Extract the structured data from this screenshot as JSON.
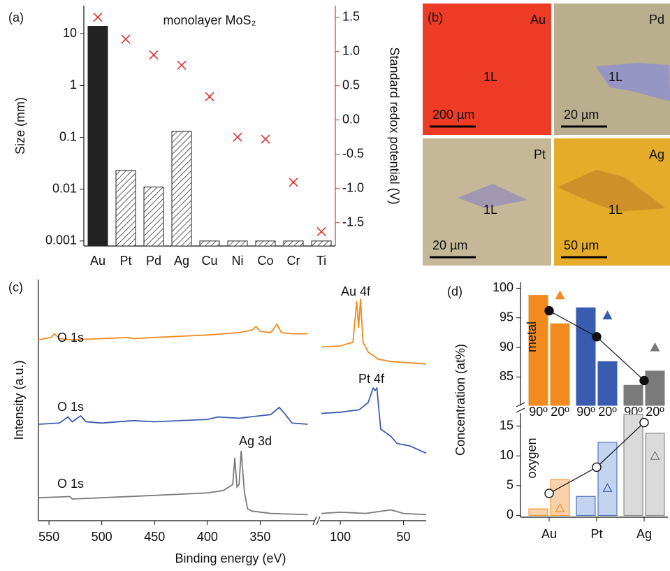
{
  "chart_data": [
    {
      "type": "bar",
      "label": "(a)",
      "title": "monolayer MoS₂",
      "categories": [
        "Au",
        "Pt",
        "Pd",
        "Ag",
        "Cu",
        "Ni",
        "Co",
        "Cr",
        "Ti"
      ],
      "ylabel": "Size (mm)",
      "y2label": "Standard redox potential (V)",
      "yscale": "log",
      "ylim": [
        0.0008,
        35
      ],
      "yticks": [
        0.001,
        0.01,
        0.1,
        1,
        10
      ],
      "y2lim": [
        -1.84,
        1.67
      ],
      "y2ticks": [
        -1.5,
        {
          "value": -1,
          "label": "-1.0"
        },
        -0.5,
        {
          "value": 0,
          "label": "0.0"
        },
        0.5,
        {
          "value": 1,
          "label": "1.0"
        },
        1.5
      ],
      "series": [
        {
          "type": "bar",
          "color": "#222222",
          "hatched": [
            false,
            true,
            true,
            true,
            true,
            true,
            true,
            true,
            true
          ],
          "values": [
            14,
            0.023,
            0.011,
            0.13,
            0.001,
            0.001,
            0.001,
            0.001,
            0.001
          ]
        },
        {
          "type": "scatter",
          "marker": "x",
          "axis": "y2",
          "color": "#e03030",
          "values": [
            1.5,
            1.18,
            0.95,
            0.8,
            0.34,
            -0.25,
            -0.28,
            -0.91,
            -1.63
          ]
        }
      ]
    },
    {
      "type": "line",
      "label": "(c)",
      "xlabel": "Binding energy (eV)",
      "ylabel": "Intensity (a.u.)",
      "xlim": [
        560,
        32
      ],
      "xbreak": [
        300,
        115
      ],
      "xticks": [
        550,
        500,
        450,
        400,
        350,
        100,
        50
      ],
      "ylim": [
        0,
        10
      ],
      "series": [
        {
          "color": "#f28a1e",
          "x": [
            560,
            548,
            545,
            540,
            530,
            500,
            475,
            470,
            450,
            400,
            370,
            358,
            354,
            350,
            340,
            334,
            330,
            320,
            305,
            null,
            115,
            100,
            90,
            87,
            85.5,
            84,
            82,
            78,
            70,
            60,
            32
          ],
          "values": [
            7.5,
            7.6,
            7.75,
            7.55,
            7.5,
            7.55,
            7.6,
            7.55,
            7.6,
            7.7,
            7.8,
            7.9,
            8.05,
            7.85,
            7.8,
            8.15,
            7.8,
            7.75,
            7.75,
            null,
            7.2,
            7.25,
            7.4,
            9.1,
            8.0,
            9.2,
            7.4,
            7.0,
            6.7,
            6.6,
            6.5
          ]
        },
        {
          "color": "#3a5cb0",
          "x": [
            560,
            540,
            532,
            528,
            520,
            515,
            500,
            470,
            450,
            400,
            390,
            370,
            350,
            340,
            332,
            326,
            320,
            305,
            null,
            115,
            100,
            85,
            78,
            74,
            72.5,
            71,
            68,
            60,
            55,
            45,
            32
          ],
          "values": [
            4.0,
            4.05,
            4.3,
            4.1,
            4.35,
            4.1,
            4.05,
            4.15,
            4.1,
            4.2,
            4.3,
            4.25,
            4.35,
            4.4,
            4.7,
            4.4,
            4.05,
            4.0,
            null,
            4.45,
            4.5,
            4.6,
            4.9,
            5.5,
            5.4,
            5.5,
            3.8,
            3.5,
            3.2,
            3.1,
            2.8
          ]
        },
        {
          "color": "#7a7a7a",
          "x": [
            560,
            530,
            528,
            500,
            450,
            400,
            385,
            376,
            374,
            372,
            370,
            368,
            365,
            362,
            358,
            340,
            305,
            null,
            115,
            100,
            80,
            60,
            50,
            32
          ],
          "values": [
            0.95,
            1.0,
            0.9,
            0.95,
            1.05,
            1.15,
            1.25,
            1.5,
            2.6,
            1.4,
            1.5,
            2.9,
            1.2,
            0.5,
            0.4,
            0.3,
            0.25,
            null,
            0.3,
            0.35,
            0.3,
            0.45,
            0.3,
            0.25
          ]
        }
      ],
      "annotations": [
        {
          "text": "O 1s",
          "color": "#333333"
        },
        {
          "text": "O 1s",
          "color": "#333333"
        },
        {
          "text": "O 1s",
          "color": "#333333"
        },
        {
          "text": "Au 4f",
          "color": "#f28a1e"
        },
        {
          "text": "Pt 4f",
          "color": "#3a5cb0"
        },
        {
          "text": "Ag 3d",
          "color": "#7a7a7a"
        }
      ]
    },
    {
      "type": "bar",
      "label": "(d)",
      "ylabel": "Concentration (at%)",
      "name": "metal",
      "ylim": [
        80.2,
        101
      ],
      "yticks": [
        85,
        90,
        95,
        100
      ],
      "filled": true,
      "category_colors": [
        "#f28a1e",
        "#3a5cb0",
        "#7a7a7a"
      ],
      "edge_colors": [
        "#f28a1e",
        "#3a5cb0",
        "#7a7a7a"
      ],
      "series": [
        {
          "name": "90º",
          "values": [
            98.8,
            96.7,
            83.6
          ]
        },
        {
          "name": "20º",
          "values": [
            94,
            87.6,
            86
          ]
        }
      ],
      "markers": [
        {
          "shape": "circle",
          "color": "#111111",
          "values": [
            96.2,
            91.8,
            84.4
          ]
        },
        {
          "shape": "triangle",
          "values": [
            98.8,
            95.4,
            90
          ]
        }
      ]
    },
    {
      "type": "bar",
      "name": "oxygen",
      "categories": [
        "Au",
        "Pt",
        "Ag"
      ],
      "ylim": [
        -0.3,
        17.2
      ],
      "yticks": [
        0,
        5,
        10,
        15
      ],
      "filled": false,
      "category_colors": [
        "#f9d2aa",
        "#c3d4f0",
        "#dadada"
      ],
      "edge_colors": [
        "#f28a1e",
        "#3a5cb0",
        "#7a7a7a"
      ],
      "series": [
        {
          "values": [
            1.1,
            3.2,
            17
          ]
        },
        {
          "values": [
            6.0,
            12.3,
            13.8
          ]
        }
      ],
      "markers": [
        {
          "shape": "circle",
          "color": "#111111",
          "values": [
            3.7,
            8.1,
            15.6
          ]
        },
        {
          "shape": "triangle",
          "values": [
            1.2,
            4.6,
            10.0
          ]
        }
      ]
    }
  ],
  "micrographs": {
    "label": "(b)",
    "panels": [
      {
        "metal": "Au",
        "layer": "1L",
        "scale": "200 µm",
        "color": "#ee3b26",
        "flake": "#ee3b26"
      },
      {
        "metal": "Pd",
        "layer": "1L",
        "scale": "20 µm",
        "color": "#b9ae8e",
        "flake": "#8f8fd0"
      },
      {
        "metal": "Pt",
        "layer": "1L",
        "scale": "20 µm",
        "color": "#c4b898",
        "flake": "#9a8fb8"
      },
      {
        "metal": "Ag",
        "layer": "1L",
        "scale": "50 µm",
        "color": "#e5ac2a",
        "flake": "#c98a2a"
      }
    ]
  }
}
